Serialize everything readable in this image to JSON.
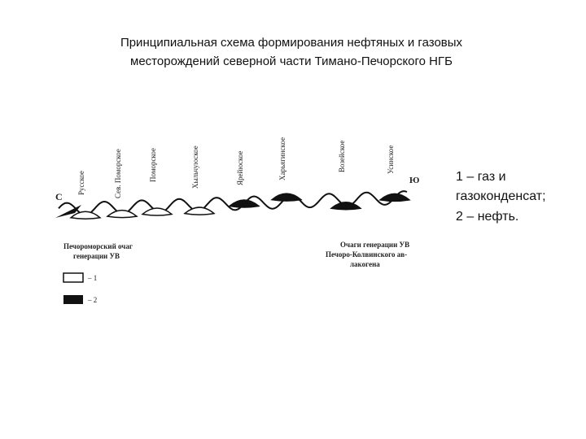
{
  "header": {
    "title_lines": [
      "Принципиальная схема формирования нефтяных и газовых",
      "месторождений северной части Тимано-Печорского НГБ"
    ]
  },
  "legend_note": {
    "lines": [
      "1 – газ и",
      "газоконденсат;",
      "2 – нефть."
    ]
  },
  "diagram": {
    "north": "С",
    "south": "Ю",
    "fields": [
      "Русское",
      "Сев. Поморское",
      "Поморское",
      "Хыльчуюское",
      "Ярейюское",
      "Харьягинское",
      "Возейское",
      "Усинское"
    ],
    "left_source": [
      "Печороморский очаг",
      "генерации УВ"
    ],
    "right_source": [
      "Очаги генерации УВ",
      "Печоро-Колвинского ав-",
      "лакогена"
    ],
    "key": [
      "– 1",
      "– 2"
    ]
  }
}
